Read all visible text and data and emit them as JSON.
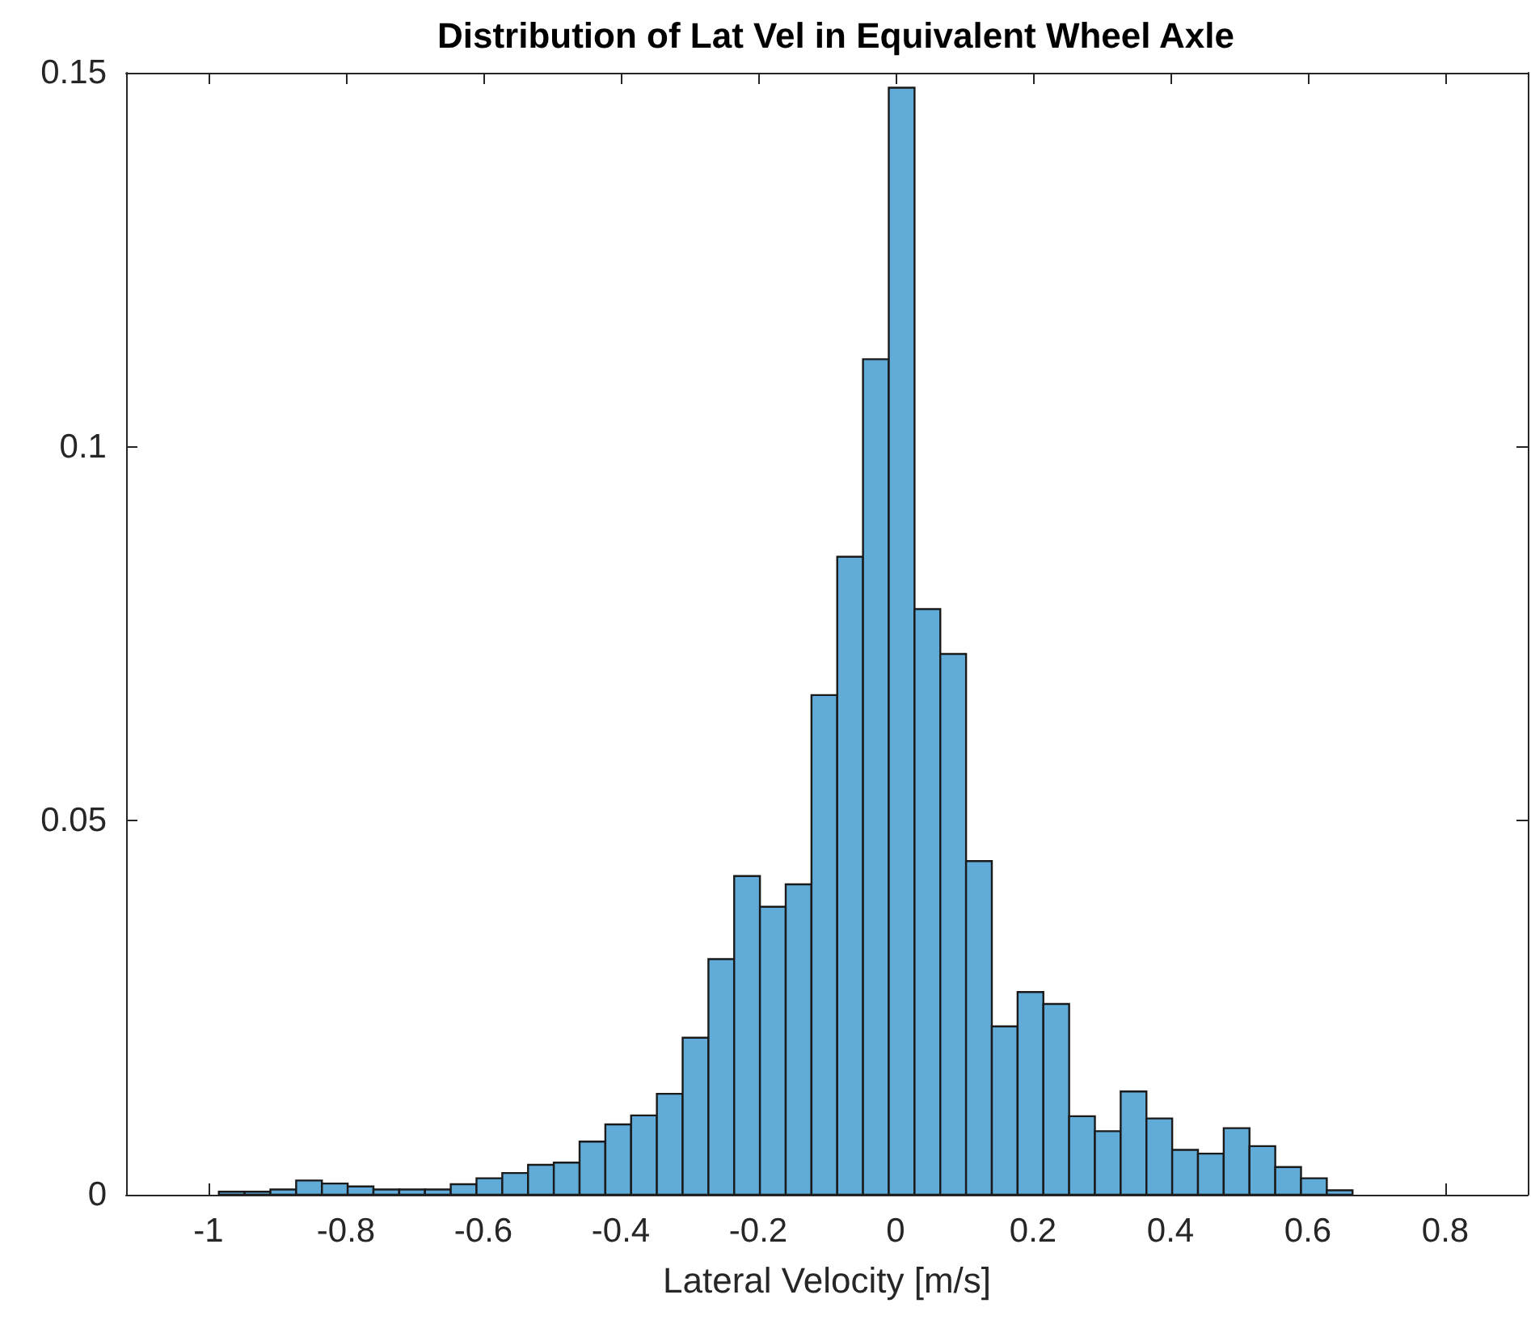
{
  "chart_data": {
    "type": "histogram",
    "title": "Distribution of Lat Vel in Equivalent Wheel Axle",
    "xlabel": "Lateral Velocity [m/s]",
    "bins": [
      -0.985,
      -0.9475,
      -0.91,
      -0.8725,
      -0.835,
      -0.7975,
      -0.76,
      -0.7225,
      -0.685,
      -0.6475,
      -0.61,
      -0.5725,
      -0.535,
      -0.4975,
      -0.46,
      -0.4225,
      -0.385,
      -0.3475,
      -0.31,
      -0.2725,
      -0.235,
      -0.1975,
      -0.16,
      -0.1225,
      -0.085,
      -0.0475,
      -0.01,
      0.0275,
      0.065,
      0.1025,
      0.14,
      0.1775,
      0.215,
      0.2525,
      0.29,
      0.3275,
      0.365,
      0.4025,
      0.44,
      0.4775,
      0.515,
      0.5525,
      0.59,
      0.6275,
      0.665,
      0.7025,
      0.74,
      0.7775,
      0.815,
      0.8525
    ],
    "values": [
      0.0004,
      0.0004,
      0.0007,
      0.0019,
      0.0015,
      0.0011,
      0.0007,
      0.0007,
      0.0007,
      0.0014,
      0.0022,
      0.0029,
      0.004,
      0.0043,
      0.0071,
      0.0094,
      0.0106,
      0.0135,
      0.021,
      0.0315,
      0.0426,
      0.0385,
      0.0415,
      0.0668,
      0.0853,
      0.1117,
      0.148,
      0.0783,
      0.0723,
      0.0446,
      0.0225,
      0.0271,
      0.0255,
      0.0105,
      0.0085,
      0.0138,
      0.0102,
      0.006,
      0.0055,
      0.0089,
      0.0065,
      0.0037,
      0.0022,
      0.0006,
      0,
      0,
      0,
      null,
      null
    ],
    "color": "#61abd9",
    "xlim": [
      -1.12,
      0.92
    ],
    "xticks": [
      -1,
      -0.8,
      -0.6,
      -0.4,
      -0.2,
      0,
      0.2,
      0.4,
      0.6,
      0.8
    ],
    "ylim": [
      0,
      0.15
    ],
    "yticks": [
      0,
      0.05,
      0.1,
      0.15
    ],
    "grid": false
  }
}
